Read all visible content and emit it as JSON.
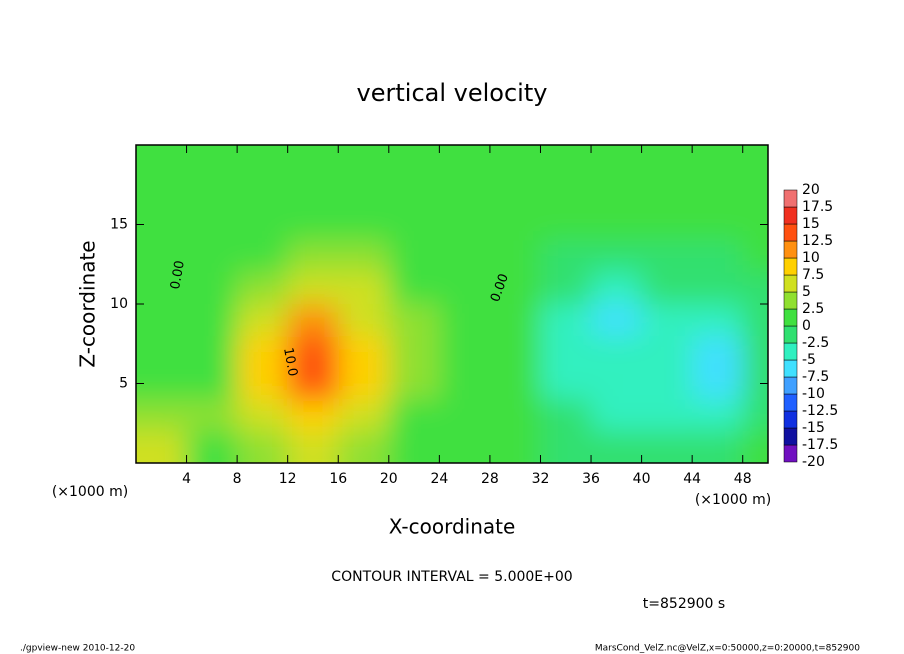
{
  "chart_data": {
    "type": "heatmap",
    "title": "vertical velocity",
    "xlabel": "X-coordinate",
    "ylabel": "Z-coordinate",
    "x_unit_left": "(×1000 m)",
    "x_unit_right": "(×1000 m)",
    "contour_interval": "CONTOUR INTERVAL = 5.000E+00",
    "time_label": "t=852900 s",
    "footer_left": "./gpview-new  2010-12-20",
    "footer_right": "MarsCond_VelZ.nc@VelZ,x=0:50000,z=0:20000,t=852900",
    "contour_labels": [
      "0.00",
      "0.00",
      "10.0"
    ],
    "xlim": [
      0,
      50
    ],
    "ylim": [
      0,
      20
    ],
    "xticks": [
      4,
      8,
      12,
      16,
      20,
      24,
      28,
      32,
      36,
      40,
      44,
      48
    ],
    "yticks": [
      5,
      10,
      15
    ],
    "x": [
      2,
      6,
      10,
      14,
      18,
      22,
      26,
      30,
      34,
      38,
      42,
      46,
      50
    ],
    "z": [
      1,
      3,
      5,
      7,
      9,
      11,
      13,
      15,
      17,
      19
    ],
    "field": [
      [
        7,
        2,
        4,
        5,
        4,
        1,
        1,
        0,
        -1,
        -2,
        -1,
        -1,
        0
      ],
      [
        3,
        3,
        6,
        9,
        7,
        2,
        1,
        0,
        -2,
        -4,
        -3,
        -3,
        -1
      ],
      [
        2,
        2,
        8,
        13,
        9,
        3,
        1,
        0,
        -3,
        -5,
        -4,
        -6,
        -2
      ],
      [
        1,
        2,
        8,
        14,
        8,
        3,
        1,
        0,
        -3,
        -5,
        -4,
        -6,
        -2
      ],
      [
        1,
        2,
        7,
        11,
        6,
        3,
        1,
        0,
        -3,
        -6,
        -3,
        -4,
        -2
      ],
      [
        1,
        2,
        4,
        6,
        5,
        2,
        1,
        0,
        -2,
        -3,
        -2,
        -2,
        -2
      ],
      [
        0,
        1,
        2,
        4,
        3,
        2,
        1,
        0,
        -1,
        -2,
        -1,
        -1,
        0
      ],
      [
        0,
        1,
        1,
        2,
        2,
        2,
        1,
        0,
        0,
        0,
        0,
        0,
        0
      ],
      [
        1,
        1,
        1,
        1,
        2,
        2,
        1,
        0,
        0,
        0,
        0,
        0,
        0
      ],
      [
        1,
        1,
        1,
        1,
        1,
        1,
        1,
        1,
        1,
        1,
        1,
        1,
        1
      ]
    ],
    "colorbar": {
      "levels": [
        -20,
        -17.5,
        -15,
        -12.5,
        -10,
        -7.5,
        -5,
        -2.5,
        0,
        2.5,
        5,
        7.5,
        10,
        12.5,
        15,
        17.5,
        20
      ],
      "colors": [
        "#7010c0",
        "#1010a0",
        "#1030e0",
        "#2060ff",
        "#40a0ff",
        "#40e0ff",
        "#30f0c0",
        "#30e070",
        "#40e040",
        "#90e030",
        "#d0e020",
        "#ffd000",
        "#ff9010",
        "#ff5010",
        "#f03020",
        "#f07070"
      ]
    }
  }
}
